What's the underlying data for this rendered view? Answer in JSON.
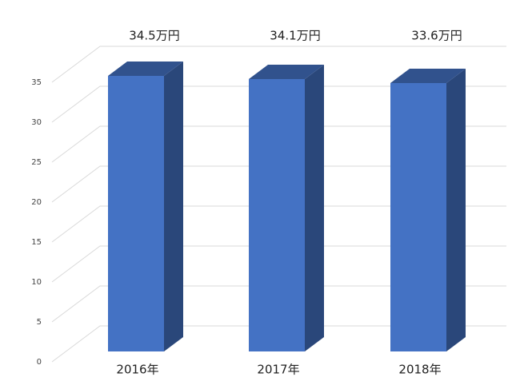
{
  "chart_data": {
    "type": "bar",
    "categories": [
      "2016年",
      "2017年",
      "2018年"
    ],
    "values": [
      34.5,
      34.1,
      33.6
    ],
    "value_labels": [
      "34.5万円",
      "34.1万円",
      "33.6万円"
    ],
    "color": "#4472c4",
    "ylim": [
      0,
      35
    ],
    "yticks": [
      0,
      5,
      10,
      15,
      20,
      25,
      30,
      35
    ],
    "grid": true
  }
}
